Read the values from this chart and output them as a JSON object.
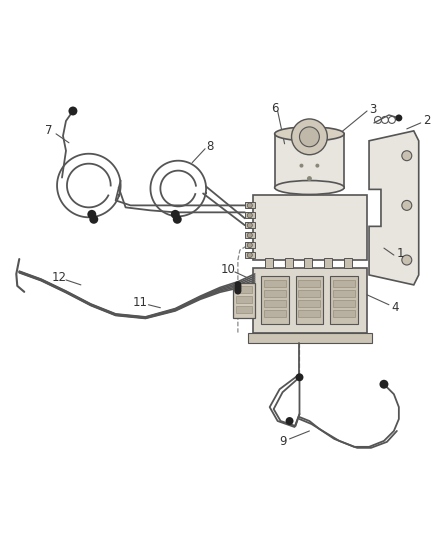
{
  "background_color": "#ffffff",
  "line_color": "#555555",
  "line_width": 1.4,
  "thin_line": 0.9,
  "label_color": "#333333",
  "label_fontsize": 8.5,
  "figsize": [
    4.38,
    5.33
  ],
  "dpi": 100,
  "leader_color": "#555555",
  "connector_color": "#222222",
  "part_fill": "#e8e4de",
  "part_edge": "#555555"
}
